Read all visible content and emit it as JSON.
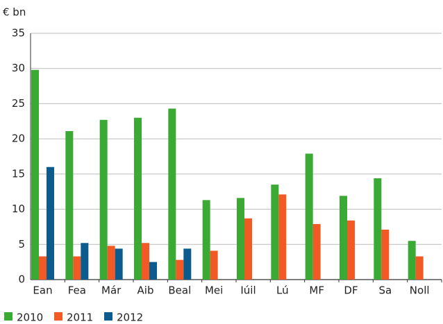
{
  "chart_data": {
    "type": "bar",
    "y_label": "€ bn",
    "categories": [
      "Ean",
      "Fea",
      "Már",
      "Aib",
      "Beal",
      "Mei",
      "Iúil",
      "Lú",
      "MF",
      "DF",
      "Sa",
      "Noll"
    ],
    "series": [
      {
        "name": "2010",
        "color": "#3aaa35",
        "values": [
          29.8,
          21.1,
          22.7,
          23.0,
          24.3,
          11.3,
          11.6,
          13.5,
          17.9,
          11.9,
          14.4,
          5.5
        ]
      },
      {
        "name": "2011",
        "color": "#f15a24",
        "values": [
          3.3,
          3.3,
          4.8,
          5.2,
          2.8,
          4.1,
          8.7,
          12.1,
          7.9,
          8.4,
          7.1,
          3.3
        ]
      },
      {
        "name": "2012",
        "color": "#0b5b8c",
        "values": [
          16.0,
          5.2,
          4.4,
          2.5,
          4.4,
          null,
          null,
          null,
          null,
          null,
          null,
          null
        ]
      }
    ],
    "ylim": [
      0,
      35
    ],
    "yticks": [
      0,
      5,
      10,
      15,
      20,
      25,
      30,
      35
    ],
    "grid": true
  }
}
